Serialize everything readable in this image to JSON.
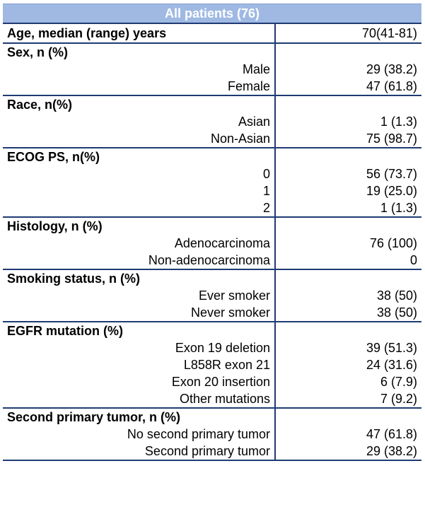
{
  "header": {
    "title": "All patients (76)"
  },
  "rows": [
    {
      "type": "section",
      "label": "Age, median (range) years",
      "value": "70(41-81)"
    },
    {
      "type": "section",
      "label": "Sex, n (%)",
      "value": ""
    },
    {
      "type": "sub",
      "label": "Male",
      "value": "29 (38.2)"
    },
    {
      "type": "sub",
      "label": "Female",
      "value": "47 (61.8)"
    },
    {
      "type": "section",
      "label": "Race, n(%)",
      "value": ""
    },
    {
      "type": "sub",
      "label": "Asian",
      "value": "1 (1.3)"
    },
    {
      "type": "sub",
      "label": "Non-Asian",
      "value": "75 (98.7)"
    },
    {
      "type": "section",
      "label": "ECOG PS, n(%)",
      "value": ""
    },
    {
      "type": "sub",
      "label": "0",
      "value": "56 (73.7)"
    },
    {
      "type": "sub",
      "label": "1",
      "value": "19 (25.0)"
    },
    {
      "type": "sub",
      "label": "2",
      "value": "1 (1.3)"
    },
    {
      "type": "section",
      "label": "Histology, n (%)",
      "value": ""
    },
    {
      "type": "sub",
      "label": "Adenocarcinoma",
      "value": "76 (100)"
    },
    {
      "type": "sub",
      "label": "Non-adenocarcinoma",
      "value": "0"
    },
    {
      "type": "section",
      "label": "Smoking status, n (%)",
      "value": ""
    },
    {
      "type": "sub",
      "label": "Ever smoker",
      "value": "38 (50)"
    },
    {
      "type": "sub",
      "label": "Never smoker",
      "value": "38 (50)"
    },
    {
      "type": "section",
      "label": "EGFR mutation (%)",
      "value": ""
    },
    {
      "type": "sub",
      "label": "Exon 19 deletion",
      "value": "39 (51.3)"
    },
    {
      "type": "sub",
      "label": "L858R exon 21",
      "value": "24 (31.6)"
    },
    {
      "type": "sub",
      "label": "Exon 20 insertion",
      "value": "6 (7.9)"
    },
    {
      "type": "sub",
      "label": "Other mutations",
      "value": "7 (9.2)"
    },
    {
      "type": "section",
      "label": "Second primary tumor, n (%)",
      "value": ""
    },
    {
      "type": "sub",
      "label": "No second primary tumor",
      "value": "47 (61.8)"
    },
    {
      "type": "sub",
      "label": "Second primary tumor",
      "value": "29 (38.2)"
    }
  ]
}
